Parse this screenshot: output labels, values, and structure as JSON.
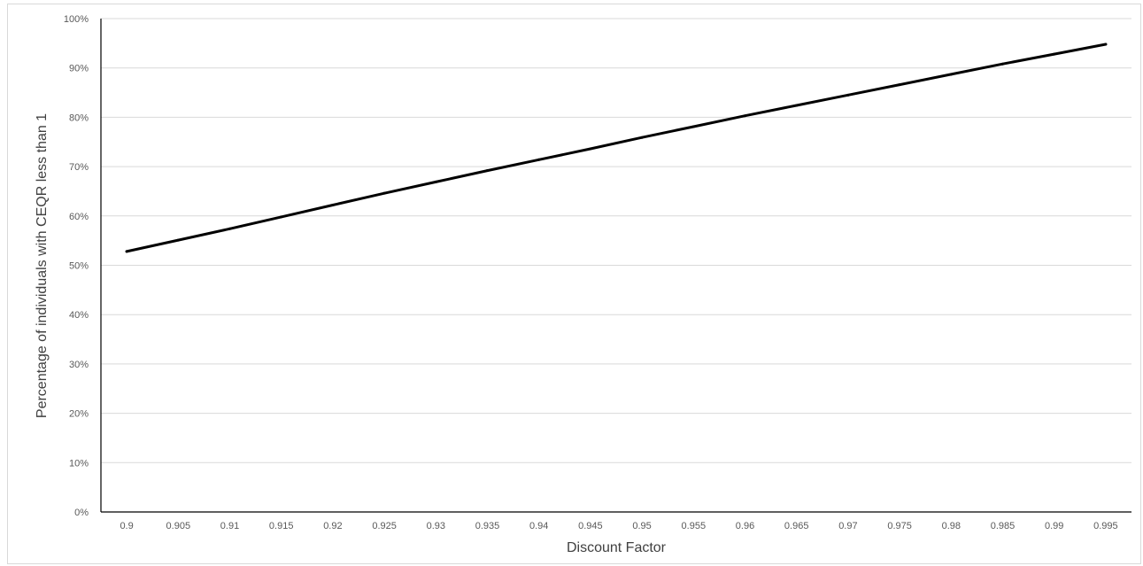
{
  "chart_data": {
    "type": "line",
    "title": "",
    "xlabel": "Discount Factor",
    "ylabel": "Percentage of individuals with CEQR less than 1",
    "x_categories": [
      "0.9",
      "0.905",
      "0.91",
      "0.915",
      "0.92",
      "0.925",
      "0.93",
      "0.935",
      "0.94",
      "0.945",
      "0.95",
      "0.955",
      "0.96",
      "0.965",
      "0.97",
      "0.975",
      "0.98",
      "0.985",
      "0.99",
      "0.995"
    ],
    "y_ticks": [
      "0%",
      "10%",
      "20%",
      "30%",
      "40%",
      "50%",
      "60%",
      "70%",
      "80%",
      "90%",
      "100%"
    ],
    "ylim": [
      0,
      100
    ],
    "grid": "horizontal",
    "legend": "none",
    "series": [
      {
        "color": "#000000",
        "x": [
          0.9,
          0.905,
          0.91,
          0.915,
          0.92,
          0.925,
          0.93,
          0.935,
          0.94,
          0.945,
          0.95,
          0.955,
          0.96,
          0.965,
          0.97,
          0.975,
          0.98,
          0.985,
          0.99,
          0.995
        ],
        "values": [
          52.8,
          55.1,
          57.4,
          59.8,
          62.2,
          64.6,
          66.9,
          69.2,
          71.4,
          73.6,
          75.9,
          78.1,
          80.3,
          82.4,
          84.5,
          86.6,
          88.7,
          90.8,
          92.8,
          94.8
        ]
      }
    ]
  }
}
